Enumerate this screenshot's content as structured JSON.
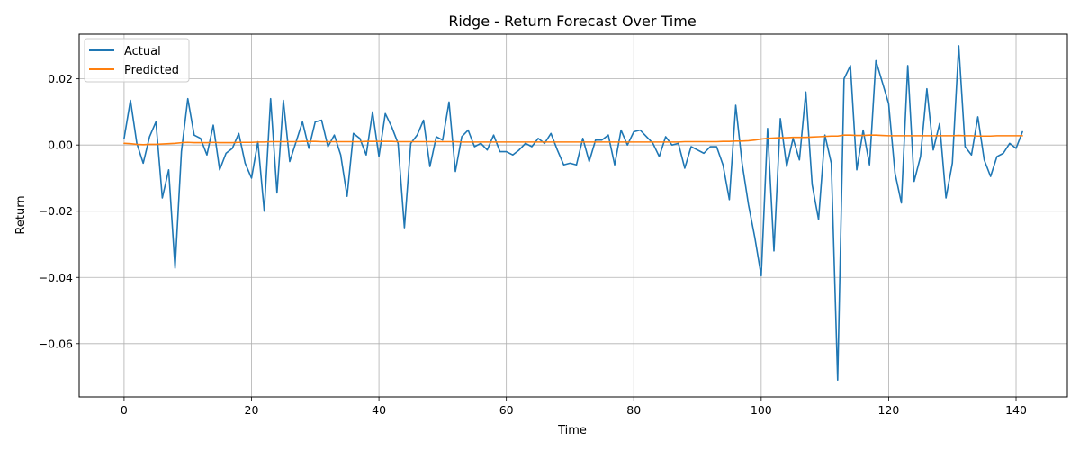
{
  "chart_data": {
    "type": "line",
    "title": "Ridge - Return Forecast Over Time",
    "xlabel": "Time",
    "ylabel": "Return",
    "xlim": [
      -7.05,
      148.05
    ],
    "ylim": [
      -0.0761,
      0.0335
    ],
    "grid": true,
    "legend_position": "top-left",
    "x_ticks": [
      0,
      20,
      40,
      60,
      80,
      100,
      120,
      140
    ],
    "y_ticks": [
      -0.06,
      -0.04,
      -0.02,
      0.0,
      0.02
    ],
    "x_tick_labels": [
      "0",
      "20",
      "40",
      "60",
      "80",
      "100",
      "120",
      "140"
    ],
    "y_tick_labels": [
      "−0.06",
      "−0.04",
      "−0.02",
      "0.00",
      "0.02"
    ],
    "series": [
      {
        "name": "Actual",
        "color": "#1f77b4",
        "values": [
          0.002,
          0.0135,
          0.0005,
          -0.0055,
          0.0025,
          0.007,
          -0.016,
          -0.0075,
          -0.0372,
          -0.002,
          0.014,
          0.003,
          0.002,
          -0.003,
          0.006,
          -0.0075,
          -0.0025,
          -0.001,
          0.0035,
          -0.0055,
          -0.01,
          0.001,
          -0.02,
          0.014,
          -0.0145,
          0.0135,
          -0.005,
          0.001,
          0.007,
          -0.001,
          0.007,
          0.0075,
          -0.0005,
          0.003,
          -0.003,
          -0.0155,
          0.0035,
          0.002,
          -0.003,
          0.01,
          -0.0035,
          0.0095,
          0.0055,
          0.0005,
          -0.025,
          0.0005,
          0.003,
          0.0075,
          -0.0065,
          0.0025,
          0.0015,
          0.013,
          -0.008,
          0.0025,
          0.0045,
          -0.0005,
          0.0005,
          -0.0015,
          0.003,
          -0.002,
          -0.002,
          -0.003,
          -0.0015,
          0.0005,
          -0.0005,
          0.002,
          0.0005,
          0.0035,
          -0.0015,
          -0.006,
          -0.0055,
          -0.006,
          0.002,
          -0.005,
          0.0015,
          0.0015,
          0.003,
          -0.006,
          0.0045,
          0.0,
          0.004,
          0.0045,
          0.0025,
          0.0005,
          -0.0035,
          0.0025,
          0.0,
          0.0005,
          -0.007,
          -0.0005,
          -0.0015,
          -0.0025,
          -0.0005,
          -0.0005,
          -0.006,
          -0.0165,
          0.012,
          -0.0055,
          -0.018,
          -0.028,
          -0.0395,
          0.005,
          -0.032,
          0.008,
          -0.0065,
          0.002,
          -0.0045,
          0.016,
          -0.012,
          -0.0225,
          0.003,
          -0.0055,
          -0.071,
          0.02,
          0.024,
          -0.0075,
          0.0045,
          -0.006,
          0.0255,
          0.019,
          0.0125,
          -0.0085,
          -0.0175,
          0.024,
          -0.011,
          -0.0035,
          0.017,
          -0.0015,
          0.0065,
          -0.016,
          -0.0055,
          0.03,
          -0.0005,
          -0.003,
          0.0085,
          -0.0045,
          -0.0095,
          -0.0035,
          -0.0025,
          0.0005,
          -0.001,
          0.004
        ]
      },
      {
        "name": "Predicted",
        "color": "#ff7f0e",
        "values": [
          0.0005,
          0.0004,
          0.0002,
          0.0001,
          0.0002,
          0.0002,
          0.0003,
          0.0004,
          0.0005,
          0.0007,
          0.0008,
          0.0007,
          0.0007,
          0.0007,
          0.0008,
          0.0007,
          0.0007,
          0.0007,
          0.0008,
          0.0008,
          0.0008,
          0.0009,
          0.0009,
          0.001,
          0.001,
          0.001,
          0.001,
          0.001,
          0.0011,
          0.0011,
          0.0011,
          0.001,
          0.001,
          0.001,
          0.001,
          0.001,
          0.001,
          0.001,
          0.0011,
          0.0011,
          0.0011,
          0.0011,
          0.0011,
          0.001,
          0.001,
          0.001,
          0.001,
          0.001,
          0.001,
          0.001,
          0.001,
          0.001,
          0.001,
          0.0009,
          0.0009,
          0.0009,
          0.0009,
          0.0009,
          0.0009,
          0.0009,
          0.0009,
          0.0009,
          0.0009,
          0.0009,
          0.0009,
          0.0009,
          0.0009,
          0.0009,
          0.0009,
          0.0009,
          0.0009,
          0.0009,
          0.0009,
          0.0009,
          0.0009,
          0.0009,
          0.0009,
          0.0009,
          0.0009,
          0.0009,
          0.0009,
          0.0009,
          0.0009,
          0.0009,
          0.0009,
          0.0009,
          0.0009,
          0.0009,
          0.001,
          0.001,
          0.001,
          0.001,
          0.001,
          0.001,
          0.0011,
          0.0011,
          0.0012,
          0.0012,
          0.0013,
          0.0015,
          0.0018,
          0.002,
          0.0021,
          0.0022,
          0.0022,
          0.0023,
          0.0023,
          0.0023,
          0.0024,
          0.0025,
          0.0026,
          0.0027,
          0.0027,
          0.003,
          0.003,
          0.0029,
          0.0029,
          0.003,
          0.003,
          0.0029,
          0.0028,
          0.0028,
          0.0028,
          0.0028,
          0.0028,
          0.0028,
          0.0028,
          0.0028,
          0.0028,
          0.0028,
          0.0028,
          0.0029,
          0.0028,
          0.0028,
          0.0027,
          0.0027,
          0.0027,
          0.0028,
          0.0028,
          0.0028,
          0.0028,
          0.0028
        ]
      }
    ]
  }
}
